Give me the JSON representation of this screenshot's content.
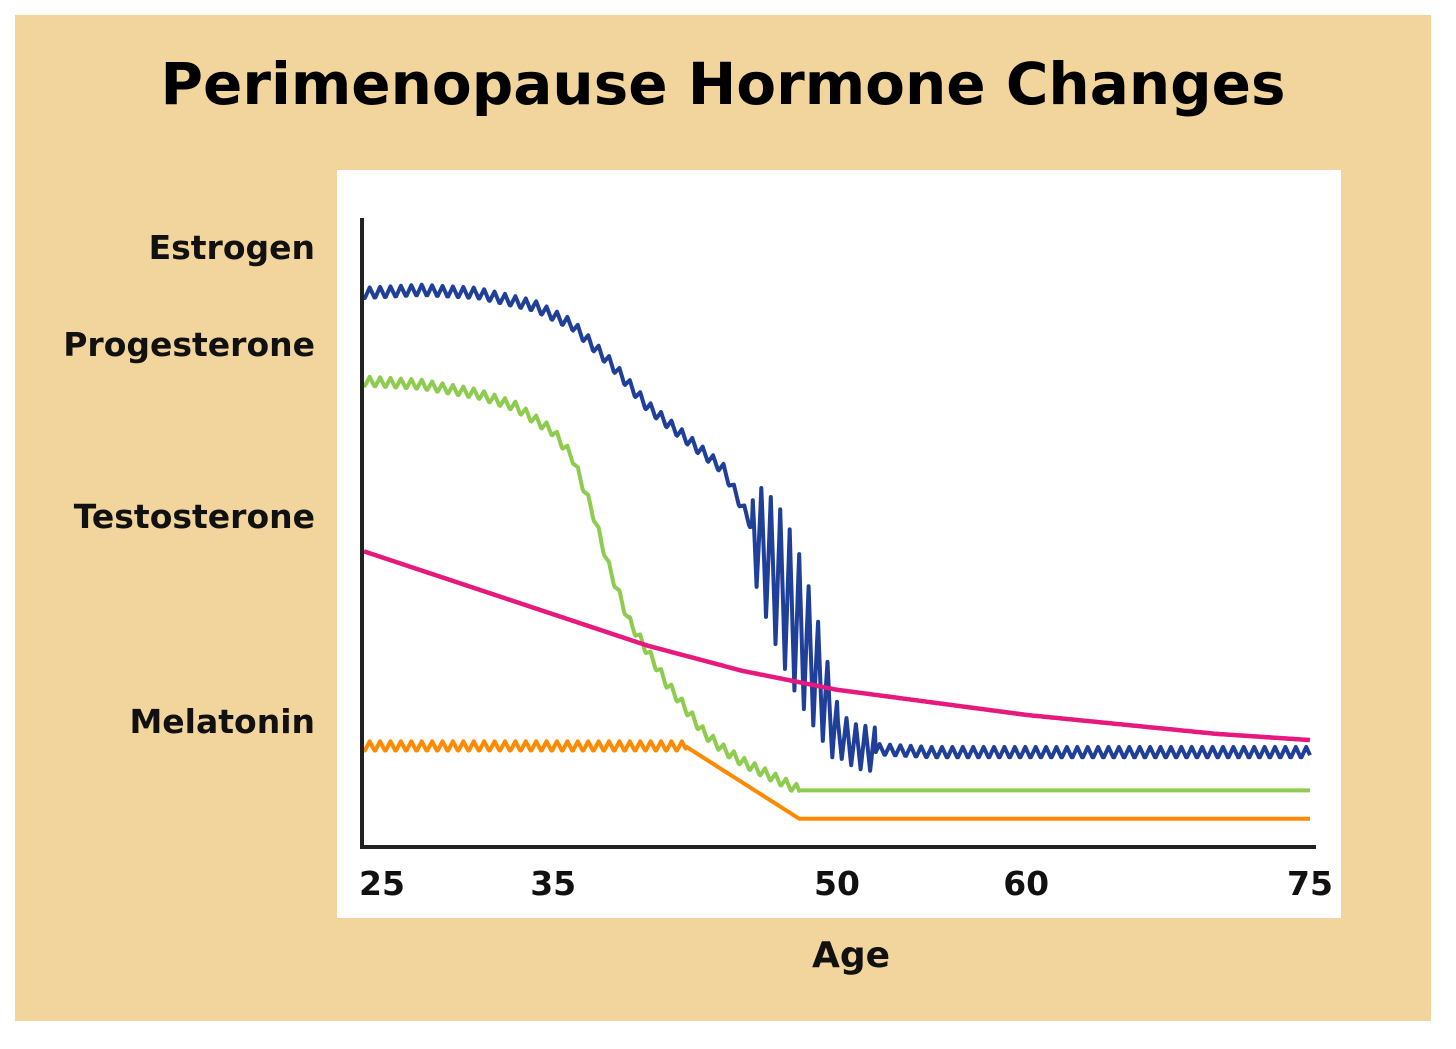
{
  "chart_data": {
    "type": "line",
    "title": "Perimenopause Hormone Changes",
    "xlabel": "Age",
    "ylabel": "",
    "xlim": [
      25,
      75
    ],
    "ylim": [
      0,
      100
    ],
    "x_ticks": [
      "25",
      "35",
      "50",
      "60",
      "75"
    ],
    "x_tick_values": [
      25,
      35,
      50,
      60,
      75
    ],
    "grid": false,
    "legend": "left side labels",
    "series": [
      {
        "name": "Estrogen",
        "color": "#1f3f99",
        "x": [
          25,
          28,
          31,
          34,
          36,
          38,
          40,
          42,
          44,
          45,
          46,
          47,
          48,
          49,
          50,
          51,
          52,
          55,
          60,
          65,
          70,
          75
        ],
        "values": [
          88,
          88.5,
          88,
          86,
          83,
          77,
          70,
          65,
          60,
          54,
          48,
          42,
          35,
          27,
          18,
          16,
          15.5,
          15,
          15,
          15,
          15,
          15
        ]
      },
      {
        "name": "Progesterone",
        "color": "#8dcc4e",
        "x": [
          25,
          28,
          31,
          33,
          35,
          36,
          37,
          38,
          39,
          40,
          41,
          42,
          43,
          44,
          45,
          46,
          47,
          48,
          49,
          50,
          55,
          60,
          65,
          70,
          75
        ],
        "values": [
          74,
          73.5,
          72,
          70,
          66,
          62,
          54,
          44,
          36,
          31,
          26,
          22,
          18,
          15.5,
          13.5,
          12,
          10.5,
          9,
          9,
          9,
          9,
          9,
          9,
          9,
          9
        ]
      },
      {
        "name": "Testosterone",
        "color": "#e6197f",
        "x": [
          25,
          30,
          35,
          40,
          45,
          50,
          55,
          60,
          65,
          70,
          75
        ],
        "values": [
          47,
          42,
          37,
          32,
          28,
          25,
          23,
          21,
          19.5,
          18,
          17
        ]
      },
      {
        "name": "Melatonin",
        "color": "#ff8a00",
        "x": [
          25,
          30,
          35,
          40,
          42,
          48,
          50,
          55,
          60,
          65,
          70,
          75
        ],
        "values": [
          16,
          16,
          16,
          16,
          16,
          4.5,
          4.5,
          4.5,
          4.5,
          4.5,
          4.5,
          4.5
        ]
      }
    ]
  }
}
